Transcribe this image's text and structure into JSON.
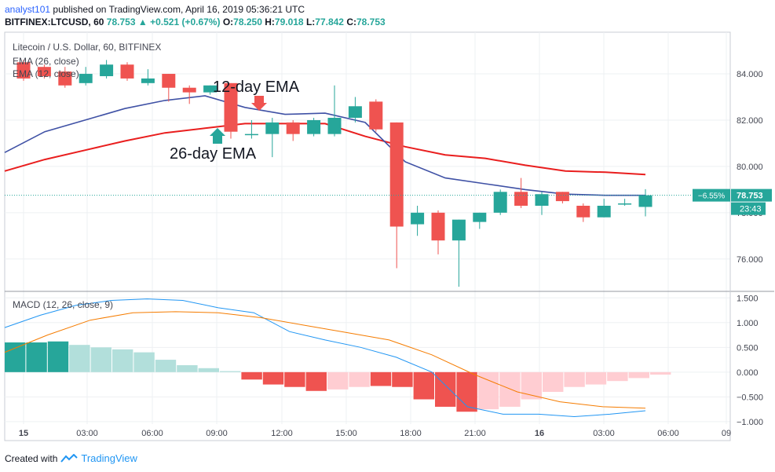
{
  "header": {
    "user": "analyst101",
    "published": "published on TradingView.com, April 16, 2019 05:36:21 UTC",
    "symbol": "BITFINEX:LTCUSD, 60",
    "last": "78.753",
    "arrow": "▲",
    "change": "+0.521 (+0.67%)",
    "o_label": "O:",
    "o": "78.250",
    "h_label": "H:",
    "h": "79.018",
    "l_label": "L:",
    "l": "77.842",
    "c_label": "C:",
    "c": "78.753"
  },
  "legend": {
    "title": "Litecoin / U.S. Dollar, 60, BITFINEX",
    "ema26": "EMA (26, close)",
    "ema12": "EMA (12, close)",
    "macd": "MACD (12, 26, close, 9)"
  },
  "footer": {
    "created": "Created with",
    "brand": "TradingView"
  },
  "colors": {
    "up": "#26a69a",
    "down": "#ef5350",
    "ema26": "#e91e1e",
    "ema12": "#3f51a5",
    "macd": "#2196f3",
    "signal": "#f57c00",
    "hist_up_strong": "#26a69a",
    "hist_up_weak": "#b2dfdb",
    "hist_down_strong": "#ef5350",
    "hist_down_weak": "#ffcdd2"
  },
  "chart_data": {
    "type": "candlestick",
    "price_axis": {
      "ticks": [
        76,
        78,
        80,
        82,
        84
      ],
      "tick_labels": [
        "76.000",
        "78.000",
        "80.000",
        "82.000",
        "84.000"
      ],
      "ylim": [
        74.6,
        85.8
      ]
    },
    "time_axis": {
      "labels": [
        "15",
        "03:00",
        "06:00",
        "09:00",
        "12:00",
        "15:00",
        "18:00",
        "21:00",
        "16",
        "03:00",
        "06:00",
        "09"
      ]
    },
    "candles": [
      {
        "o": 84.5,
        "h": 84.6,
        "l": 83.7,
        "c": 83.8
      },
      {
        "o": 84.3,
        "h": 84.4,
        "l": 83.8,
        "c": 83.9
      },
      {
        "o": 84.1,
        "h": 84.3,
        "l": 83.4,
        "c": 83.5
      },
      {
        "o": 83.6,
        "h": 84.3,
        "l": 83.5,
        "c": 84.0
      },
      {
        "o": 83.9,
        "h": 84.6,
        "l": 83.8,
        "c": 84.4
      },
      {
        "o": 84.4,
        "h": 84.5,
        "l": 83.7,
        "c": 83.8
      },
      {
        "o": 83.6,
        "h": 84.2,
        "l": 83.5,
        "c": 83.8
      },
      {
        "o": 84.0,
        "h": 84.0,
        "l": 82.8,
        "c": 83.4
      },
      {
        "o": 83.4,
        "h": 83.5,
        "l": 82.7,
        "c": 83.2
      },
      {
        "o": 83.2,
        "h": 83.5,
        "l": 83.1,
        "c": 83.5
      },
      {
        "o": 83.6,
        "h": 83.6,
        "l": 81.2,
        "c": 81.5
      },
      {
        "o": 81.4,
        "h": 82.0,
        "l": 81.2,
        "c": 81.4
      },
      {
        "o": 81.4,
        "h": 82.1,
        "l": 80.4,
        "c": 81.9
      },
      {
        "o": 81.9,
        "h": 82.0,
        "l": 81.1,
        "c": 81.4
      },
      {
        "o": 81.4,
        "h": 82.1,
        "l": 81.3,
        "c": 82.0
      },
      {
        "o": 81.4,
        "h": 83.5,
        "l": 81.3,
        "c": 82.1
      },
      {
        "o": 82.1,
        "h": 83.0,
        "l": 81.9,
        "c": 82.6
      },
      {
        "o": 82.8,
        "h": 82.9,
        "l": 81.5,
        "c": 81.6
      },
      {
        "o": 81.9,
        "h": 81.9,
        "l": 75.6,
        "c": 77.4
      },
      {
        "o": 77.5,
        "h": 78.3,
        "l": 77.0,
        "c": 78.0
      },
      {
        "o": 78.0,
        "h": 78.1,
        "l": 76.2,
        "c": 76.8
      },
      {
        "o": 76.8,
        "h": 77.7,
        "l": 74.8,
        "c": 77.7
      },
      {
        "o": 77.6,
        "h": 78.0,
        "l": 77.3,
        "c": 78.0
      },
      {
        "o": 78.0,
        "h": 79.0,
        "l": 77.9,
        "c": 78.9
      },
      {
        "o": 78.9,
        "h": 79.5,
        "l": 78.2,
        "c": 78.3
      },
      {
        "o": 78.3,
        "h": 78.9,
        "l": 77.9,
        "c": 78.8
      },
      {
        "o": 78.9,
        "h": 78.9,
        "l": 78.4,
        "c": 78.5
      },
      {
        "o": 78.3,
        "h": 78.4,
        "l": 77.6,
        "c": 77.8
      },
      {
        "o": 77.8,
        "h": 78.6,
        "l": 77.8,
        "c": 78.3
      },
      {
        "o": 78.4,
        "h": 78.6,
        "l": 78.3,
        "c": 78.4
      },
      {
        "o": 78.25,
        "h": 79.018,
        "l": 77.842,
        "c": 78.753
      }
    ],
    "ema26": [
      79.8,
      80.3,
      80.7,
      81.1,
      81.45,
      81.65,
      81.85,
      81.85,
      81.85,
      81.3,
      80.85,
      80.5,
      80.35,
      80.05,
      79.8,
      79.75,
      79.65
    ],
    "ema12": [
      80.6,
      81.5,
      82.0,
      82.5,
      82.85,
      83.05,
      82.55,
      82.25,
      82.3,
      81.9,
      80.2,
      79.5,
      79.25,
      79.0,
      78.8,
      78.75,
      78.75
    ],
    "annotations": [
      {
        "text": "12-day EMA",
        "direction": "down",
        "color": "#ef5350"
      },
      {
        "text": "26-day EMA",
        "direction": "up",
        "color": "#26a69a"
      }
    ],
    "last_price_label": "78.753",
    "change_label": "−6.55%",
    "countdown_label": "23:43",
    "macd": {
      "axis": {
        "ticks": [
          1.5,
          1.0,
          0.5,
          0.0,
          -0.5,
          -1.0
        ],
        "tick_labels": [
          "1.500",
          "1.000",
          "0.500",
          "0.000",
          "−0.500",
          "−1.000"
        ],
        "ylim": [
          -1.05,
          1.6
        ]
      },
      "histogram": [
        0.6,
        0.6,
        0.62,
        0.55,
        0.5,
        0.46,
        0.4,
        0.25,
        0.14,
        0.08,
        0.02,
        -0.15,
        -0.25,
        -0.3,
        -0.38,
        -0.35,
        -0.3,
        -0.28,
        -0.3,
        -0.55,
        -0.7,
        -0.8,
        -0.75,
        -0.7,
        -0.55,
        -0.4,
        -0.3,
        -0.25,
        -0.18,
        -0.12,
        -0.05
      ],
      "macd_line": [
        0.9,
        1.15,
        1.35,
        1.45,
        1.48,
        1.45,
        1.3,
        1.2,
        0.82,
        0.65,
        0.5,
        0.3,
        0.0,
        -0.7,
        -0.85,
        -0.85,
        -0.9,
        -0.85,
        -0.78
      ],
      "signal_line": [
        0.4,
        0.75,
        1.05,
        1.2,
        1.22,
        1.2,
        1.1,
        0.95,
        0.8,
        0.65,
        0.35,
        -0.05,
        -0.4,
        -0.6,
        -0.7,
        -0.73
      ]
    }
  }
}
